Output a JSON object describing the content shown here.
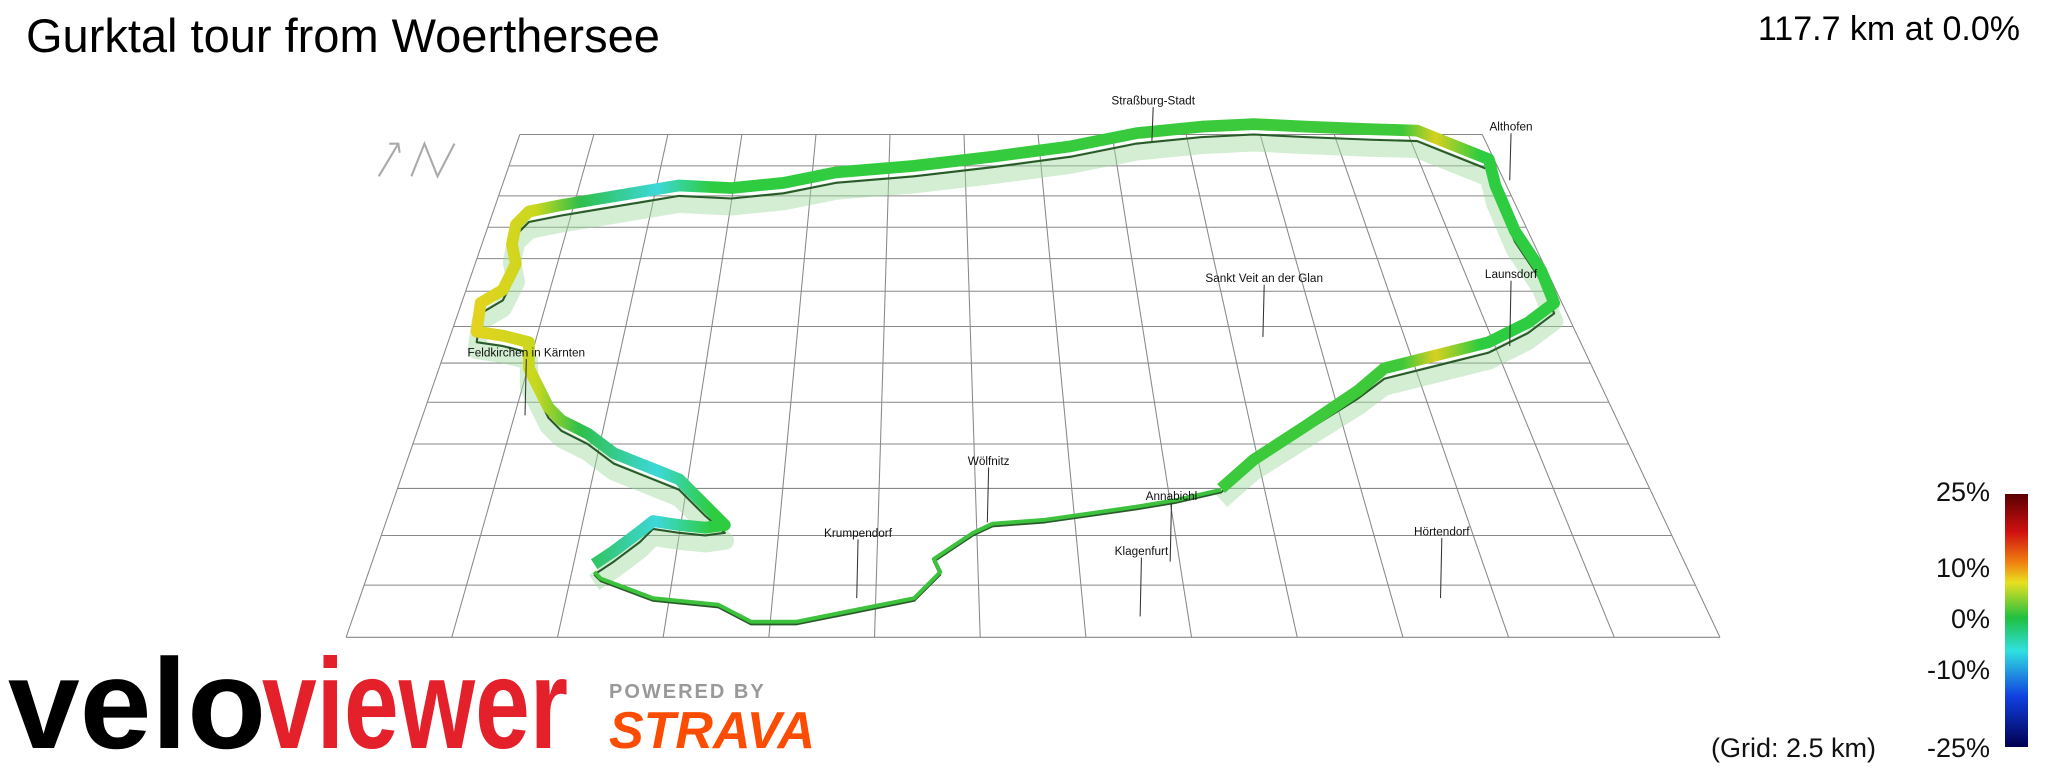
{
  "header": {
    "title": "Gurktal tour from Woerthersee",
    "summary": "117.7 km at 0.0%"
  },
  "places": [
    "Straßburg-Stadt",
    "Althofen",
    "Sankt Veit an der Glan",
    "Launsdorf",
    "Feldkirchen in Kärnten",
    "Wölfnitz",
    "Krumpendorf",
    "Annabichl",
    "Klagenfurt",
    "Hörtendorf"
  ],
  "legend": {
    "labels": [
      "25%",
      "10%",
      "0%",
      "-10%",
      "-25%"
    ],
    "grid_note": "(Grid: 2.5 km)"
  },
  "branding": {
    "logo_left": "velo",
    "logo_right": "viewer",
    "powered_by": "POWERED BY",
    "partner": "STRAVA"
  }
}
